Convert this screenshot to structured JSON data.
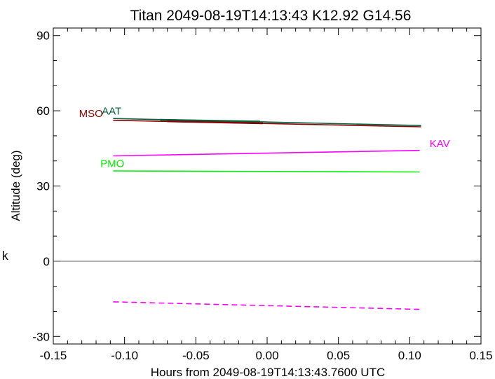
{
  "side_mark": "k",
  "chart_data": {
    "type": "line",
    "title": "Titan 2049-08-19T14:13:43  K12.92  G14.56",
    "xlabel": "Hours from 2049-08-19T14:13:43.7600 UTC",
    "ylabel": "Altitude (deg)",
    "xlim": [
      -0.15,
      0.15
    ],
    "ylim": [
      -33,
      93
    ],
    "xticks": [
      "-0.15",
      "-0.10",
      "-0.05",
      "0.00",
      "0.05",
      "0.10",
      "0.15"
    ],
    "yticks": [
      "-30",
      "0",
      "30",
      "60",
      "90"
    ],
    "zero_line": 0,
    "grid": false,
    "series": [
      {
        "name": "AAT",
        "color": "#00603a",
        "dash": false,
        "points": [
          [
            -0.108,
            56.9
          ],
          [
            0.108,
            54.1
          ]
        ]
      },
      {
        "name": "",
        "color": "#00603a",
        "dash": false,
        "width": 2.4,
        "points": [
          [
            -0.075,
            56.4
          ],
          [
            -0.005,
            55.7
          ]
        ]
      },
      {
        "name": "MSO",
        "color": "#8b0000",
        "dash": false,
        "points": [
          [
            -0.108,
            56.2
          ],
          [
            0.108,
            53.6
          ]
        ]
      },
      {
        "name": "",
        "color": "#8b0000",
        "dash": false,
        "width": 2.4,
        "points": [
          [
            -0.07,
            55.8
          ],
          [
            -0.003,
            55.0
          ]
        ]
      },
      {
        "name": "KAV",
        "color": "#ff00ff",
        "dash": false,
        "points": [
          [
            -0.108,
            42.0
          ],
          [
            0.107,
            44.2
          ]
        ]
      },
      {
        "name": "PMO",
        "color": "#00ee00",
        "dash": false,
        "points": [
          [
            -0.108,
            36.0
          ],
          [
            0.107,
            35.6
          ]
        ]
      },
      {
        "name": "",
        "color": "#ff00ff",
        "dash": true,
        "points": [
          [
            -0.108,
            -16.2
          ],
          [
            0.107,
            -19.2
          ]
        ]
      }
    ],
    "labels": [
      {
        "text": "MSO",
        "color": "#8b0000",
        "x": -0.132,
        "y": 57.5
      },
      {
        "text": "AAT",
        "color": "#00603a",
        "x": -0.116,
        "y": 58.5
      },
      {
        "text": "KAV",
        "color": "#ff00ff",
        "x": 0.114,
        "y": 45.5
      },
      {
        "text": "PMO",
        "color": "#00ee00",
        "x": -0.117,
        "y": 37.5
      }
    ]
  }
}
